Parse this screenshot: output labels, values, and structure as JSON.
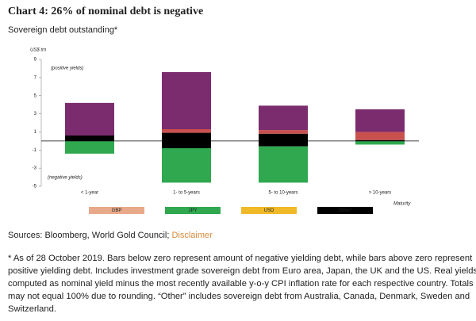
{
  "chart_data": {
    "type": "bar",
    "stacked": true,
    "title": "Chart 4: 26% of nominal debt is negative",
    "subtitle": "Sovereign debt outstanding*",
    "y_label": "US$ trn",
    "x_label": "Maturity",
    "annotations": [
      "(positive yields)",
      "(negative yields)"
    ],
    "categories": [
      "< 1-year",
      "1- to 5-years",
      "5- to 10-years",
      "> 10-years"
    ],
    "series": [
      {
        "name": null,
        "color": "#000000",
        "values": [
          0.6,
          0.9,
          0.8,
          0.1
        ]
      },
      {
        "name": null,
        "color": "#c9504f",
        "values": [
          0,
          0.4,
          0.4,
          0.9
        ]
      },
      {
        "name": null,
        "color": "#7b2c6e",
        "values": [
          3.6,
          6.3,
          2.7,
          2.5
        ]
      },
      {
        "name": null,
        "color": "#000000",
        "values": [
          0,
          -0.8,
          -0.6,
          0
        ]
      },
      {
        "name": null,
        "color": "#2fa84f",
        "values": [
          -1.4,
          -3.8,
          -4.0,
          -0.4
        ]
      }
    ],
    "legend": [
      {
        "name": "GBP",
        "color": "#e8a98a"
      },
      {
        "name": "JPY",
        "color": "#2fa84f"
      },
      {
        "name": "USD",
        "color": "#f0b928"
      },
      {
        "name": "Other*",
        "color": "#000000"
      }
    ],
    "ylim": [
      -5,
      9
    ],
    "yticks": [
      -5,
      -3,
      -1,
      1,
      3,
      5,
      7,
      9
    ],
    "grid": false
  },
  "sources": "Sources: Bloomberg, World Gold Council;",
  "disclaimer": "Disclaimer",
  "notes": [
    "* As of 28 October 2019. Bars below zero represent amount of negative yielding debt, while bars above zero represent",
    "positive yielding debt. Includes investment grade sovereign debt from Euro area, Japan, the UK and the US. Real yields",
    "computed as nominal yield minus the most recently available y-o-y CPI inflation rate for each respective country. Totals",
    "may not equal 100% due to rounding. “Other” includes sovereign debt from Australia, Canada, Denmark, Sweden and",
    "Switzerland."
  ]
}
